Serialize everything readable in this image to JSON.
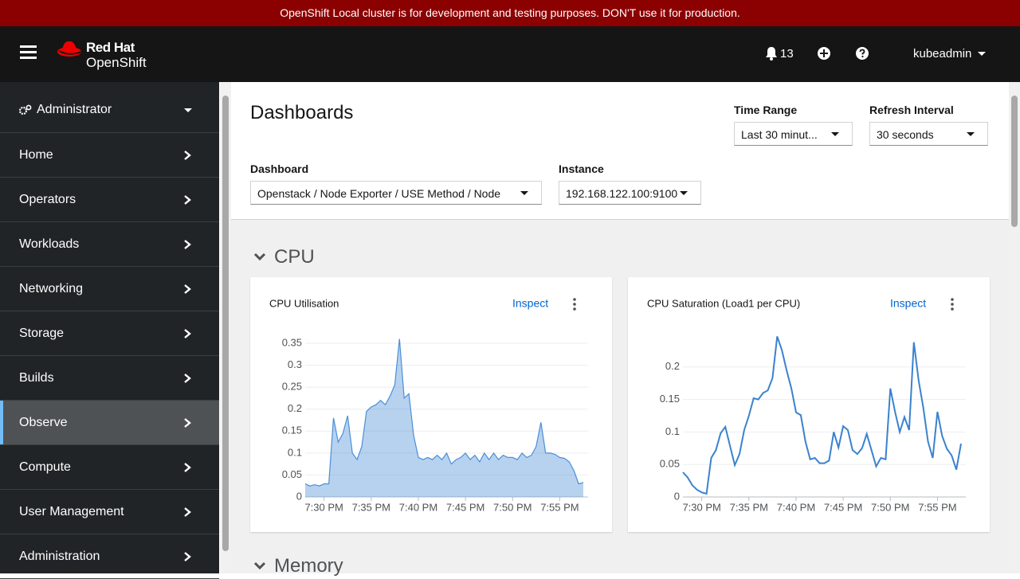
{
  "banner": "OpenShift Local cluster is for development and testing purposes. DON'T use it for production.",
  "masthead": {
    "brand_line1": "Red Hat",
    "brand_line2": "OpenShift",
    "notifications": 13,
    "user": "kubeadmin"
  },
  "sidebar": {
    "perspective": "Administrator",
    "items": [
      "Home",
      "Operators",
      "Workloads",
      "Networking",
      "Storage",
      "Builds",
      "Observe",
      "Compute",
      "User Management",
      "Administration"
    ]
  },
  "page": {
    "title": "Dashboards",
    "filters": [
      {
        "label": "Time Range",
        "value": "Last 30 minut..."
      },
      {
        "label": "Refresh Interval",
        "value": "30 seconds"
      },
      {
        "label": "Dashboard",
        "value": "Openstack / Node Exporter / USE Method / Node"
      },
      {
        "label": "Instance",
        "value": "192.168.122.100:9100"
      }
    ]
  },
  "sections": [
    {
      "title": "CPU"
    },
    {
      "title": "Memory"
    }
  ],
  "chart_data": [
    {
      "type": "area",
      "title": "CPU Utilisation",
      "link": "Inspect",
      "color": "#4a8ed8",
      "xlim": [
        0,
        59
      ],
      "xticks": [
        {
          "value": 4,
          "label": "7:30 PM"
        },
        {
          "value": 14,
          "label": "7:35 PM"
        },
        {
          "value": 24,
          "label": "7:40 PM"
        },
        {
          "value": 34,
          "label": "7:45 PM"
        },
        {
          "value": 44,
          "label": "7:50 PM"
        },
        {
          "value": 54,
          "label": "7:55 PM"
        }
      ],
      "ylim": [
        0,
        0.37
      ],
      "yticks": [
        0,
        0.05,
        0.1,
        0.15,
        0.2,
        0.25,
        0.3,
        0.35
      ],
      "grid": true,
      "values": [
        0.03,
        0.025,
        0.028,
        0.025,
        0.03,
        0.03,
        0.18,
        0.125,
        0.145,
        0.185,
        0.1,
        0.085,
        0.115,
        0.195,
        0.205,
        0.21,
        0.22,
        0.21,
        0.23,
        0.255,
        0.36,
        0.225,
        0.235,
        0.14,
        0.09,
        0.085,
        0.09,
        0.085,
        0.095,
        0.085,
        0.1,
        0.075,
        0.085,
        0.09,
        0.1,
        0.085,
        0.095,
        0.08,
        0.1,
        0.085,
        0.1,
        0.085,
        0.095,
        0.09,
        0.09,
        0.085,
        0.1,
        0.09,
        0.095,
        0.115,
        0.17,
        0.1,
        0.1,
        0.097,
        0.09,
        0.088,
        0.08,
        0.06,
        0.03,
        0.033
      ]
    },
    {
      "type": "line",
      "title": "CPU Saturation (Load1 per CPU)",
      "link": "Inspect",
      "color": "#3a82cf",
      "xlim": [
        0,
        59
      ],
      "xticks": [
        {
          "value": 4,
          "label": "7:30 PM"
        },
        {
          "value": 14,
          "label": "7:35 PM"
        },
        {
          "value": 24,
          "label": "7:40 PM"
        },
        {
          "value": 34,
          "label": "7:45 PM"
        },
        {
          "value": 44,
          "label": "7:50 PM"
        },
        {
          "value": 54,
          "label": "7:55 PM"
        }
      ],
      "ylim": [
        0,
        0.25
      ],
      "yticks": [
        0,
        0.05,
        0.1,
        0.15,
        0.2
      ],
      "grid": true,
      "values": [
        0.038,
        0.03,
        0.018,
        0.011,
        0.007,
        0.005,
        0.06,
        0.072,
        0.098,
        0.108,
        0.078,
        0.049,
        0.066,
        0.103,
        0.125,
        0.152,
        0.15,
        0.16,
        0.164,
        0.183,
        0.247,
        0.226,
        0.195,
        0.167,
        0.13,
        0.126,
        0.085,
        0.058,
        0.06,
        0.052,
        0.052,
        0.056,
        0.1,
        0.076,
        0.109,
        0.103,
        0.072,
        0.066,
        0.075,
        0.097,
        0.072,
        0.047,
        0.06,
        0.058,
        0.167,
        0.131,
        0.1,
        0.123,
        0.103,
        0.238,
        0.179,
        0.137,
        0.085,
        0.06,
        0.131,
        0.094,
        0.074,
        0.064,
        0.042,
        0.082
      ]
    }
  ]
}
